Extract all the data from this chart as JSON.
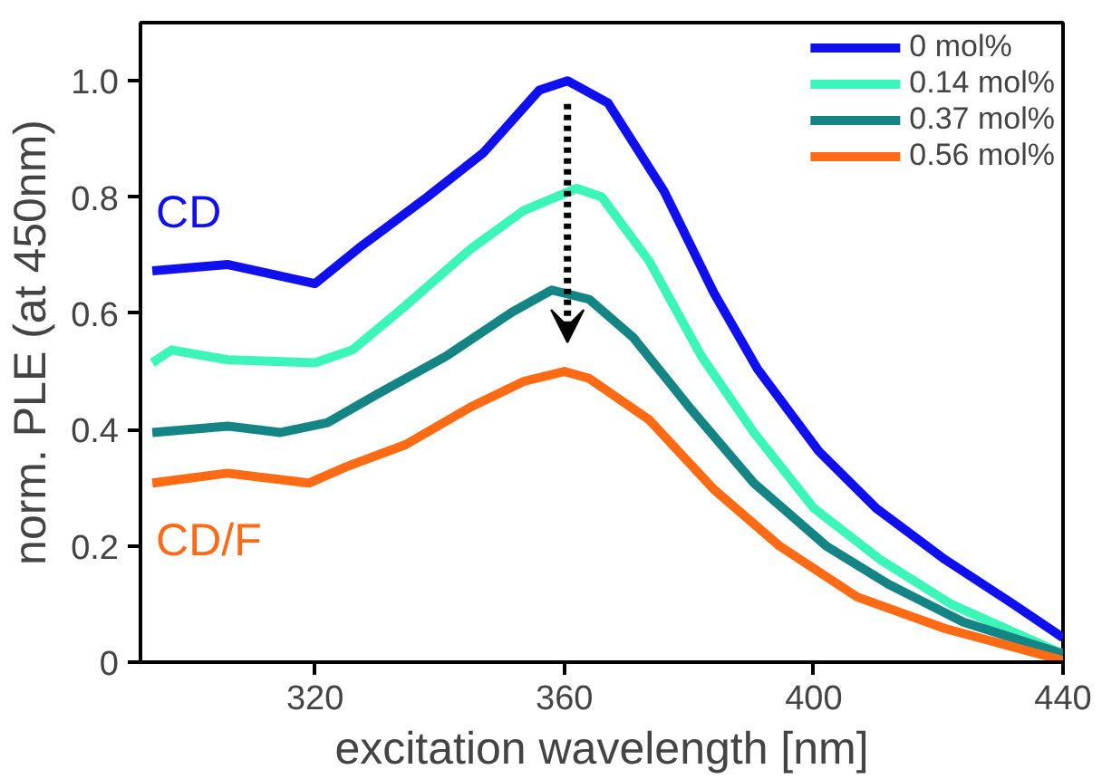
{
  "chart_data": {
    "type": "line",
    "xlabel": "excitation wavelength [nm]",
    "ylabel": "norm. PLE (at 450nm)",
    "xlim": [
      292,
      440
    ],
    "ylim": [
      0,
      1.1
    ],
    "xticks": [
      320,
      360,
      400,
      440
    ],
    "yticks": [
      {
        "value": 0,
        "label": "0"
      },
      {
        "value": 0.2,
        "label": "0.2"
      },
      {
        "value": 0.4,
        "label": "0.4"
      },
      {
        "value": 0.6,
        "label": "0.6"
      },
      {
        "value": 0.8,
        "label": "0.8"
      },
      {
        "value": 1.0,
        "label": "1.0"
      }
    ],
    "grid": false,
    "legend": "top right",
    "line_style": "solid",
    "marker": "none",
    "series": [
      {
        "name": "0 mol%",
        "color": "#1010ee",
        "x": [
          293.9,
          306,
          320,
          327,
          338,
          347,
          356,
          360.5,
          367,
          376,
          384,
          391,
          400.8,
          410,
          421,
          432,
          440
        ],
        "values": [
          0.673,
          0.684,
          0.651,
          0.712,
          0.8,
          0.876,
          0.984,
          1.0,
          0.962,
          0.81,
          0.635,
          0.504,
          0.363,
          0.265,
          0.177,
          0.1,
          0.042
        ]
      },
      {
        "name": "0.14 mol%",
        "color": "#3cf5b8",
        "x": [
          293.9,
          297,
          306,
          320,
          326,
          334.5,
          345,
          353.5,
          362,
          366,
          373.6,
          382,
          390.4,
          400,
          410.6,
          422,
          432,
          440
        ],
        "values": [
          0.515,
          0.537,
          0.52,
          0.515,
          0.537,
          0.613,
          0.711,
          0.777,
          0.815,
          0.8,
          0.69,
          0.526,
          0.395,
          0.265,
          0.177,
          0.1,
          0.052,
          0.014
        ]
      },
      {
        "name": "0.37 mol%",
        "color": "#148484",
        "x": [
          293.9,
          306,
          314.5,
          322,
          330,
          341,
          351.6,
          358,
          364,
          371,
          380,
          390.4,
          402,
          412,
          424,
          440
        ],
        "values": [
          0.395,
          0.406,
          0.395,
          0.412,
          0.461,
          0.526,
          0.602,
          0.64,
          0.624,
          0.559,
          0.439,
          0.308,
          0.2,
          0.134,
          0.069,
          0.014
        ]
      },
      {
        "name": "0.56 mol%",
        "color": "#ff6a14",
        "x": [
          293.9,
          306,
          319,
          325,
          334.5,
          345,
          353.5,
          360,
          364,
          373.6,
          384,
          394.5,
          407,
          421,
          440
        ],
        "values": [
          0.308,
          0.325,
          0.308,
          0.336,
          0.374,
          0.439,
          0.483,
          0.5,
          0.488,
          0.417,
          0.297,
          0.2,
          0.112,
          0.058,
          0.003
        ]
      }
    ],
    "annotations": [
      "CD",
      "CD/F"
    ]
  }
}
